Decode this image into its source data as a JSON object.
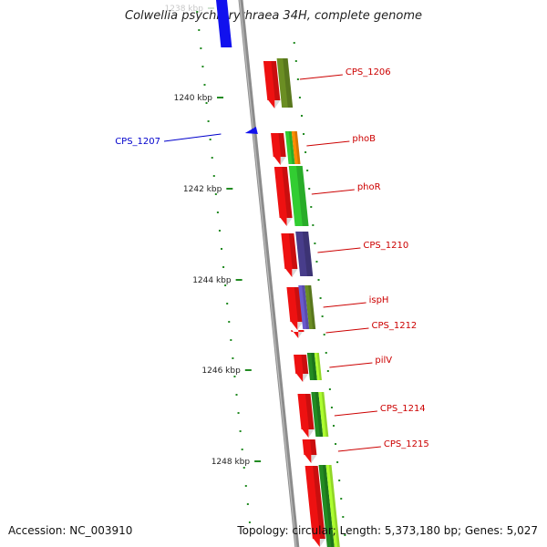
{
  "title": "Colwellia psychrerythraea 34H, complete genome",
  "footer": {
    "accession": "Accession: NC_003910",
    "summary": "Topology: circular; Length: 5,373,180 bp; Genes: 5,027"
  },
  "colors": {
    "backbone": "#8c8c8c",
    "forward_gene": "#ee1111",
    "reverse_gene": "#1111ee",
    "tick": "#228b22",
    "forward_label": "#cc0000",
    "reverse_label": "#0000cc"
  },
  "ruler": [
    {
      "label": "1238 kbp",
      "faded": true
    },
    {
      "label": "1240 kbp"
    },
    {
      "label": "1242 kbp"
    },
    {
      "label": "1244 kbp"
    },
    {
      "label": "1246 kbp"
    },
    {
      "label": "1248 kbp"
    }
  ],
  "genes": [
    {
      "label": "CPS_1206",
      "strand": "forward"
    },
    {
      "label": "CPS_1207",
      "strand": "reverse"
    },
    {
      "label": "phoB",
      "strand": "forward"
    },
    {
      "label": "phoR",
      "strand": "forward"
    },
    {
      "label": "CPS_1210",
      "strand": "forward"
    },
    {
      "label": "ispH",
      "strand": "forward"
    },
    {
      "label": "CPS_1212",
      "strand": "forward"
    },
    {
      "label": "pilV",
      "strand": "forward"
    },
    {
      "label": "CPS_1214",
      "strand": "forward"
    },
    {
      "label": "CPS_1215",
      "strand": "forward"
    }
  ]
}
